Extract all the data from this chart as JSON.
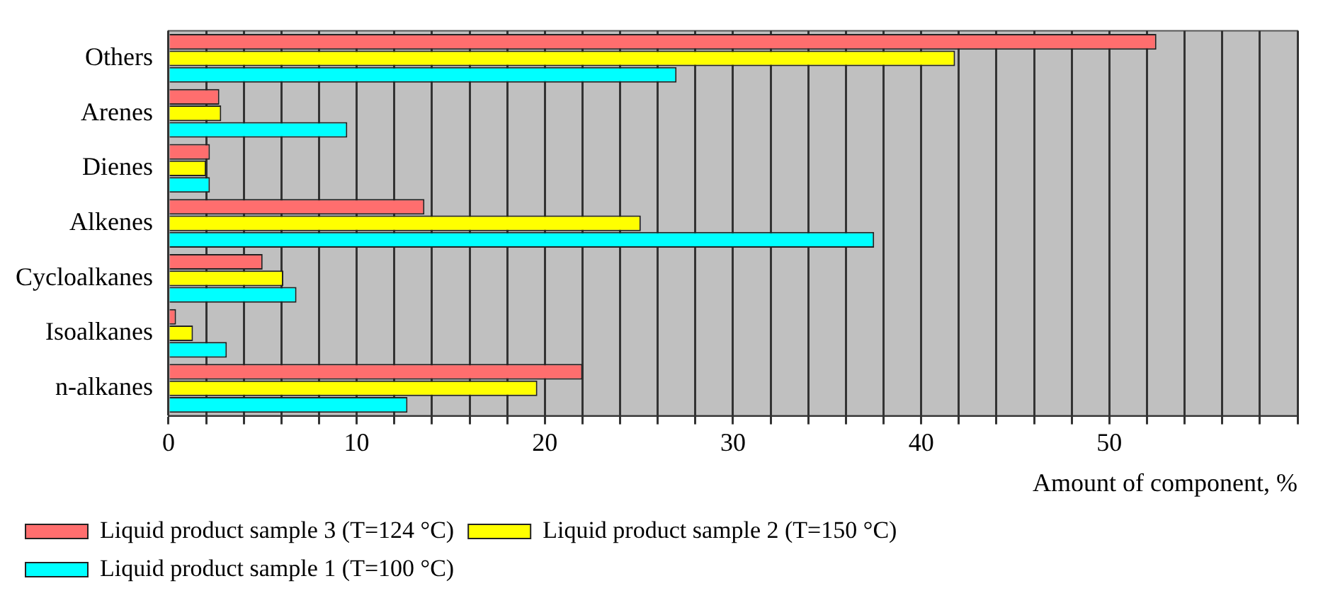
{
  "chart_data": {
    "type": "bar",
    "orientation": "horizontal",
    "categories": [
      "Others",
      "Arenes",
      "Dienes",
      "Alkenes",
      "Cycloalkanes",
      "Isoalkanes",
      "n-alkanes"
    ],
    "series": [
      {
        "name": "Liquid product sample 3 (T=124 °C)",
        "color": "#ff6e6e",
        "values": [
          52.5,
          2.7,
          2.2,
          13.6,
          5.0,
          0.4,
          22.0
        ]
      },
      {
        "name": "Liquid product sample 2 (T=150 °C)",
        "color": "#ffff00",
        "values": [
          41.8,
          2.8,
          2.0,
          25.1,
          6.1,
          1.3,
          19.6
        ]
      },
      {
        "name": "Liquid product sample 1 (T=100 °C)",
        "color": "#00ffff",
        "values": [
          27.0,
          9.5,
          2.2,
          37.5,
          6.8,
          3.1,
          12.7
        ]
      }
    ],
    "xlabel": "Amount of component, %",
    "xlim": [
      0,
      60
    ],
    "xticks": [
      0,
      {
        "value": 2,
        "label": null
      },
      {
        "value": 4,
        "label": null
      },
      {
        "value": 6,
        "label": null
      },
      {
        "value": 8,
        "label": null
      },
      10,
      {
        "value": 12,
        "label": null
      },
      {
        "value": 14,
        "label": null
      },
      {
        "value": 16,
        "label": null
      },
      {
        "value": 18,
        "label": null
      },
      20,
      {
        "value": 22,
        "label": null
      },
      {
        "value": 24,
        "label": null
      },
      {
        "value": 26,
        "label": null
      },
      {
        "value": 28,
        "label": null
      },
      30,
      {
        "value": 32,
        "label": null
      },
      {
        "value": 34,
        "label": null
      },
      {
        "value": 36,
        "label": null
      },
      {
        "value": 38,
        "label": null
      },
      40,
      {
        "value": 42,
        "label": null
      },
      {
        "value": 44,
        "label": null
      },
      {
        "value": 46,
        "label": null
      },
      {
        "value": 48,
        "label": null
      },
      50,
      {
        "value": 52,
        "label": null
      },
      {
        "value": 54,
        "label": null
      },
      {
        "value": 56,
        "label": null
      },
      {
        "value": 58,
        "label": null
      },
      {
        "value": 60,
        "label": null
      }
    ],
    "grid": "x",
    "legend": "bottom"
  }
}
